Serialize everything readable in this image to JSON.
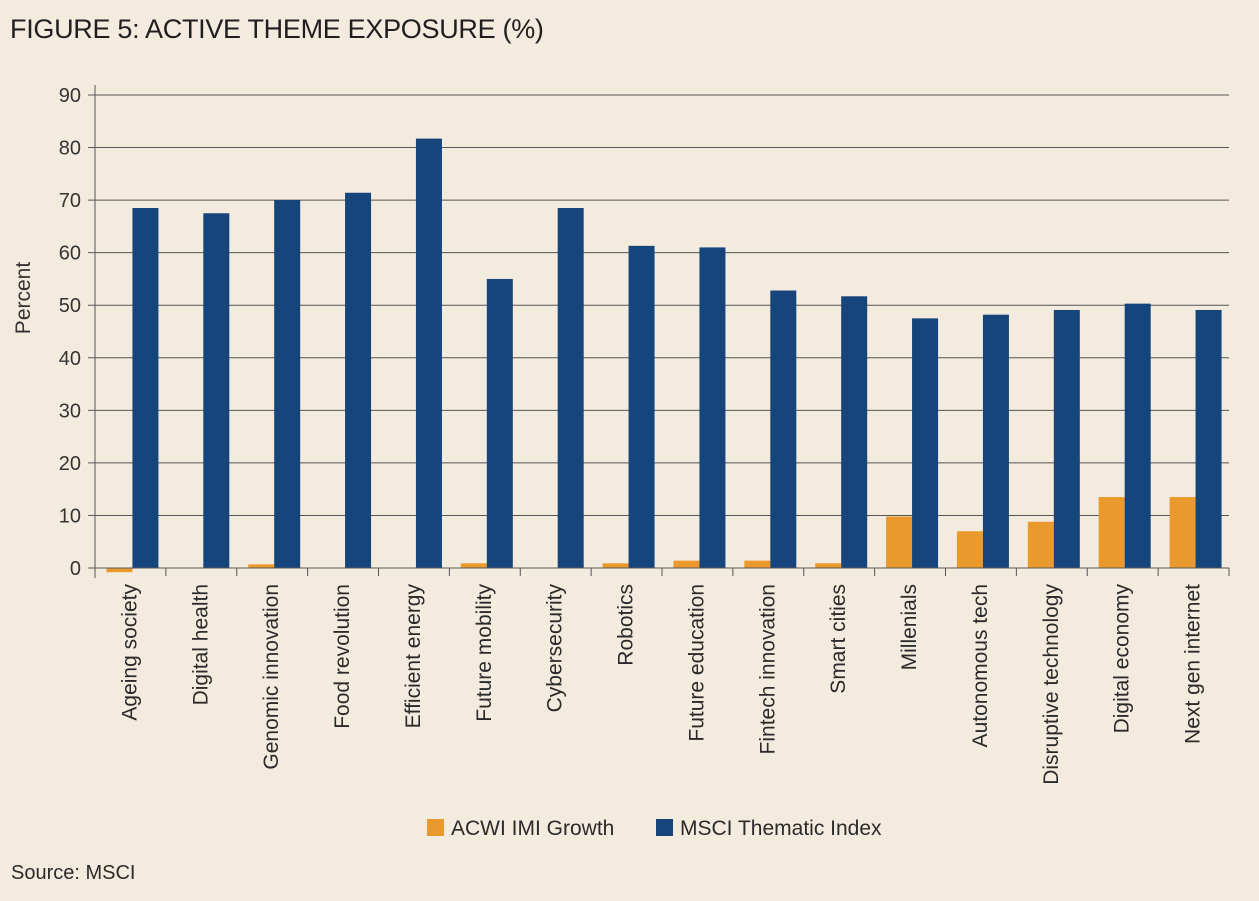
{
  "title": "FIGURE 5: ACTIVE THEME EXPOSURE (%)",
  "source": "Source: MSCI",
  "colors": {
    "background": "#f4ebdf",
    "grid": "#555555",
    "series_a": "#ea9a2d",
    "series_b": "#15457a"
  },
  "chart_data": {
    "type": "bar",
    "title": "FIGURE 5: ACTIVE THEME EXPOSURE (%)",
    "xlabel": "",
    "ylabel": "Percent",
    "ylim": [
      -1,
      90
    ],
    "yticks": [
      0,
      10,
      20,
      30,
      40,
      50,
      60,
      70,
      80,
      90
    ],
    "grid": true,
    "legend_position": "bottom",
    "categories": [
      "Ageing society",
      "Digital health",
      "Genomic  innovation",
      "Food revolution",
      "Efficient energy",
      "Future mobility",
      "Cybersecurity",
      "Robotics",
      "Future education",
      "Fintech innovation",
      "Smart cities",
      "Millenials",
      "Autonomous tech",
      "Disruptive technology",
      "Digital economy",
      "Next gen internet"
    ],
    "series": [
      {
        "name": "ACWI IMI Growth",
        "values": [
          -0.8,
          0,
          0.7,
          0,
          0,
          0.9,
          0,
          0.9,
          1.4,
          1.4,
          0.9,
          9.8,
          7.0,
          8.8,
          13.5,
          13.5
        ]
      },
      {
        "name": "MSCI Thematic Index",
        "values": [
          68.5,
          67.5,
          70.0,
          71.4,
          81.7,
          55.0,
          68.5,
          61.3,
          61.0,
          52.8,
          51.7,
          47.5,
          48.2,
          49.1,
          50.3,
          49.1
        ]
      }
    ]
  }
}
